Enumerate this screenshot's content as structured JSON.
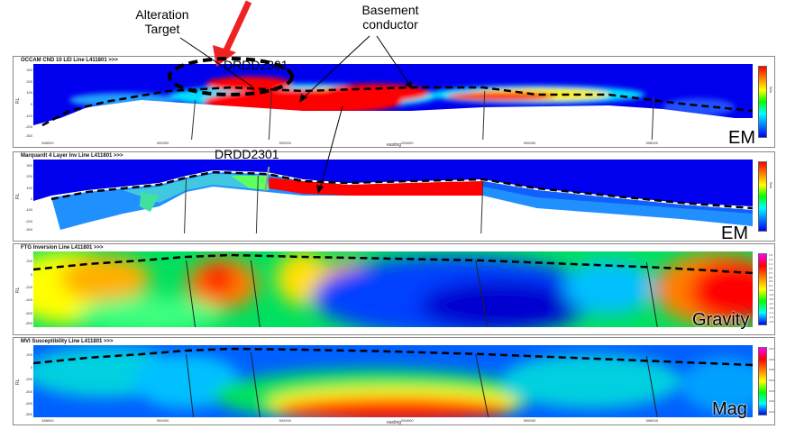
{
  "annotations": {
    "alteration_target": "Alteration\nTarget",
    "basement_conductor": "Basement\nconductor",
    "drill_hole_top": "DRDD2301",
    "drill_hole_mid": "DRDD2301"
  },
  "panels": [
    {
      "title": "OCCAM CND 10 LEI  Line L411801 >>>",
      "method": "EM",
      "ylabel": "RL",
      "yticks": [
        "300",
        "200",
        "100",
        "0",
        "-100",
        "-200",
        "-300"
      ],
      "colorbar": "rainbow",
      "colorbar_label": "S/m"
    },
    {
      "title": "Marquardt 4 Layer Inv  Line L411801 >>>",
      "method": "EM",
      "ylabel": "RL",
      "yticks": [
        "300",
        "200",
        "100",
        "0",
        "-100",
        "-200",
        "-300"
      ],
      "colorbar": "rainbow",
      "colorbar_label": "S/m"
    },
    {
      "title": "FTG Inversion  Line L411801 >>>",
      "method": "Gravity",
      "ylabel": "RL",
      "yticks": [
        "200",
        "0",
        "-200",
        "-400",
        "-600",
        "-800"
      ],
      "colorbar": "magenta",
      "colorbar_ticks": [
        "1.5",
        "1.3",
        "1.1",
        "0.9",
        "0.7",
        "0.5",
        "0.3",
        "0.1",
        "-0.1",
        "-0.3",
        "-0.5",
        "-0.7",
        "-0.9",
        "-1.1",
        "-1.3",
        "-1.5"
      ]
    },
    {
      "title": "MVI Susceptibility  Line L411801 >>>",
      "method": "Mag",
      "ylabel": "RL",
      "yticks": [
        "200",
        "0",
        "-200",
        "-400",
        "-600",
        "-800"
      ],
      "colorbar": "magenta",
      "colorbar_ticks": [
        "0.07",
        "0.06",
        "0.05",
        "0.04",
        "0.03",
        "0.02",
        "0.01"
      ]
    }
  ],
  "x_axis": {
    "label": "easting",
    "ticks": [
      "588000",
      "590000",
      "592000",
      "594000",
      "596000",
      "598000"
    ]
  },
  "colors": {
    "high": "#ff0000",
    "low": "#0000ff",
    "arrow": "#ee2222",
    "dashed_line": "#000000"
  }
}
